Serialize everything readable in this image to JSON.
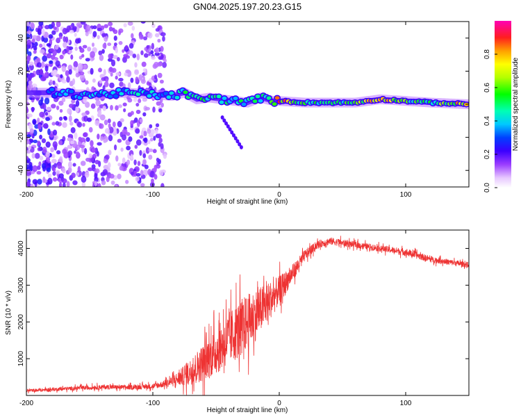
{
  "title": "GN04.2025.197.20.23.G15",
  "chart_data": [
    {
      "type": "heatmap",
      "xlabel": "Height of straight line (km)",
      "ylabel": "Frequency (Hz)",
      "xlim": [
        -200,
        150
      ],
      "ylim": [
        -50,
        50
      ],
      "xticks": [
        -200,
        -100,
        0,
        100
      ],
      "xtick_labels": [
        "-200",
        "-100",
        "0",
        "100"
      ],
      "yticks": [
        -40,
        -20,
        0,
        20,
        40
      ],
      "ytick_labels": [
        "-40",
        "-20",
        "0",
        "20",
        "40"
      ],
      "colorbar": {
        "label": "Normalized spectral amplitude",
        "range": [
          0,
          1
        ],
        "ticks": [
          0.0,
          0.2,
          0.4,
          0.6,
          0.8
        ],
        "tick_labels": [
          "0.0",
          "0.2",
          "0.4",
          "0.6",
          "0.8"
        ]
      },
      "ridge": {
        "x": [
          -180,
          -160,
          -140,
          -120,
          -100,
          -85,
          -75,
          -65,
          -55,
          -45,
          -35,
          -25,
          -15,
          -5,
          0,
          20,
          40,
          60,
          80,
          100,
          120,
          150
        ],
        "y": [
          7,
          6,
          6,
          7,
          6,
          5,
          7,
          3,
          4,
          3,
          2,
          1,
          4,
          2,
          2,
          1,
          1,
          1,
          3,
          2,
          1,
          0
        ],
        "amplitude": [
          0.35,
          0.4,
          0.4,
          0.45,
          0.4,
          0.45,
          0.5,
          0.55,
          0.55,
          0.5,
          0.5,
          0.5,
          0.55,
          0.6,
          0.9,
          0.55,
          0.5,
          0.6,
          0.85,
          0.6,
          0.5,
          0.9
        ]
      },
      "grid": false
    },
    {
      "type": "line",
      "xlabel": "Height of straight line (km)",
      "ylabel": "SNR (10 * v/v)",
      "xlim": [
        -200,
        150
      ],
      "ylim": [
        0,
        4500
      ],
      "xticks": [
        -200,
        -100,
        0,
        100
      ],
      "xtick_labels": [
        "-200",
        "-100",
        "0",
        "100"
      ],
      "yticks": [
        1000,
        2000,
        3000,
        4000
      ],
      "ytick_labels": [
        "1000",
        "2000",
        "3000",
        "4000"
      ],
      "series": [
        {
          "color": "#ee3333",
          "x": [
            -200,
            -180,
            -160,
            -140,
            -120,
            -100,
            -90,
            -80,
            -70,
            -60,
            -50,
            -40,
            -30,
            -20,
            -10,
            0,
            10,
            20,
            30,
            40,
            50,
            60,
            70,
            80,
            90,
            100,
            110,
            120,
            130,
            140,
            150
          ],
          "y": [
            130,
            160,
            200,
            230,
            220,
            250,
            320,
            450,
            650,
            900,
            1200,
            1550,
            1850,
            2150,
            2500,
            2850,
            3300,
            3800,
            4100,
            4200,
            4150,
            4100,
            4050,
            4000,
            3950,
            3900,
            3800,
            3700,
            3650,
            3600,
            3550
          ],
          "noise": [
            50,
            60,
            70,
            80,
            80,
            90,
            120,
            250,
            450,
            650,
            800,
            900,
            1000,
            900,
            700,
            500,
            300,
            200,
            130,
            130,
            120,
            110,
            110,
            110,
            110,
            130,
            120,
            110,
            100,
            100,
            100
          ]
        }
      ],
      "grid": false
    }
  ]
}
